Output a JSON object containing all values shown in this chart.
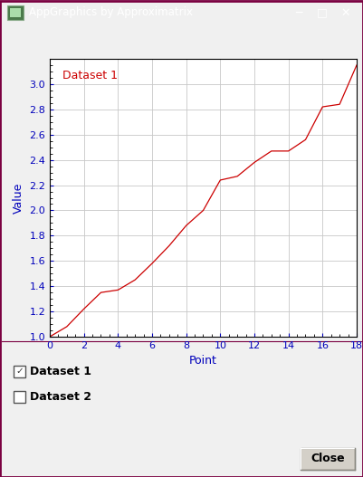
{
  "title": "AppGraphics by Approximatrix",
  "xlabel": "Point",
  "ylabel": "Value",
  "legend_label": "Dataset 1",
  "legend_color": "#cc0000",
  "x": [
    0,
    1,
    2,
    3,
    4,
    5,
    6,
    7,
    8,
    9,
    10,
    11,
    12,
    13,
    14,
    15,
    16,
    17,
    18
  ],
  "y": [
    1.0,
    1.08,
    1.22,
    1.35,
    1.37,
    1.45,
    1.58,
    1.72,
    1.88,
    2.0,
    2.24,
    2.27,
    2.38,
    2.47,
    2.47,
    2.56,
    2.82,
    2.84,
    3.15
  ],
  "line_color": "#cc0000",
  "bg_color": "#ffffff",
  "outer_bg": "#f0f0f0",
  "window_border_color": "#7a0040",
  "title_bar_color": "#6b002e",
  "title_bar_text": "#ffffff",
  "xlim": [
    0,
    18
  ],
  "ylim": [
    1.0,
    3.2
  ],
  "xticks": [
    0,
    2,
    4,
    6,
    8,
    10,
    12,
    14,
    16,
    18
  ],
  "yticks": [
    1.0,
    1.2,
    1.4,
    1.6,
    1.8,
    2.0,
    2.2,
    2.4,
    2.6,
    2.8,
    3.0
  ],
  "grid_color": "#c8c8c8",
  "axis_label_color": "#0000bb",
  "tick_label_color": "#0000bb",
  "checkbox1_label": "Dataset 1",
  "checkbox2_label": "Dataset 2",
  "close_btn_text": "Close",
  "fig_width": 4.02,
  "fig_height": 5.27,
  "dpi": 100
}
